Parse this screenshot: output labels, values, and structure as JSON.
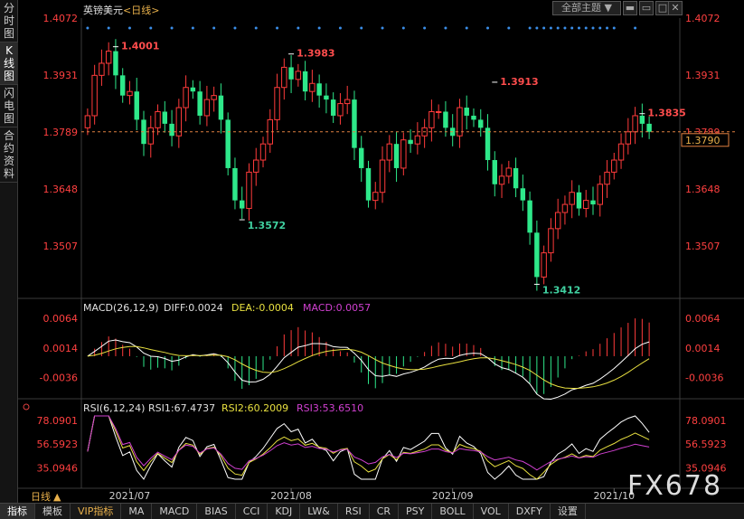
{
  "sidebar": [
    {
      "label": "分时图",
      "active": false
    },
    {
      "label": "K线图",
      "active": true
    },
    {
      "label": "闪电图",
      "active": false
    },
    {
      "label": "合约资料",
      "active": false
    }
  ],
  "header": {
    "symbol": "英镑美元",
    "period": "<日线>",
    "theme_select": "全部主题",
    "theme_arrow": "▼"
  },
  "chart_data": [
    {
      "type": "candlestick",
      "name": "英镑美元 <日线>",
      "yticks": [
        1.4072,
        1.3931,
        1.3789,
        1.3648,
        1.3507
      ],
      "yticks_text": [
        "1.4072",
        "1.3931",
        "1.3789",
        "1.3648",
        "1.3507"
      ],
      "ylim": [
        1.3395,
        1.4072
      ],
      "last_price": "1.3790",
      "annotations": [
        {
          "label": "1.4001",
          "value": 1.4001,
          "color": "#ff4d4d"
        },
        {
          "label": "1.3983",
          "value": 1.3983,
          "color": "#ff4d4d"
        },
        {
          "label": "1.3913",
          "value": 1.3913,
          "color": "#ff4d4d"
        },
        {
          "label": "1.3835",
          "value": 1.3835,
          "color": "#ff4d4d"
        },
        {
          "label": "1.3572",
          "value": 1.3572,
          "color": "#40d0a0"
        },
        {
          "label": "1.3412",
          "value": 1.3412,
          "color": "#40d0a0"
        }
      ],
      "x_labels": [
        "2021/07",
        "2021/08",
        "2021/09",
        "2021/10"
      ],
      "colors": {
        "up": "#ff3b3b",
        "down": "#2ee88a"
      },
      "closes": [
        1.383,
        1.393,
        1.396,
        1.399,
        1.393,
        1.388,
        1.389,
        1.382,
        1.376,
        1.38,
        1.384,
        1.381,
        1.378,
        1.385,
        1.39,
        1.389,
        1.383,
        1.387,
        1.388,
        1.382,
        1.37,
        1.362,
        1.36,
        1.369,
        1.372,
        1.376,
        1.382,
        1.39,
        1.395,
        1.392,
        1.394,
        1.389,
        1.391,
        1.388,
        1.387,
        1.383,
        1.386,
        1.387,
        1.375,
        1.37,
        1.362,
        1.364,
        1.372,
        1.376,
        1.37,
        1.377,
        1.376,
        1.378,
        1.38,
        1.384,
        1.384,
        1.38,
        1.378,
        1.385,
        1.383,
        1.382,
        1.38,
        1.372,
        1.366,
        1.368,
        1.37,
        1.365,
        1.362,
        1.354,
        1.343,
        1.349,
        1.355,
        1.359,
        1.361,
        1.364,
        1.36,
        1.362,
        1.361,
        1.366,
        1.369,
        1.372,
        1.376,
        1.379,
        1.383,
        1.381,
        1.379
      ]
    },
    {
      "type": "bar+line",
      "name": "MACD",
      "header": "MACD(26,12,9)",
      "diff_label": "DIFF:0.0024",
      "dea_label": "DEA:-0.0004",
      "macd_label": "MACD:0.0057",
      "yticks": [
        0.0064,
        0.0014,
        -0.0036
      ],
      "yticks_text": [
        "0.0064",
        "0.0014",
        "-0.0036"
      ],
      "ylim": [
        -0.0055,
        0.0064
      ],
      "colors": {
        "diff": "#ffffff",
        "dea": "#e8e040",
        "macd": "#d040d0"
      }
    },
    {
      "type": "line",
      "name": "RSI",
      "header": "RSI(6,12,24)",
      "rsi1_label": "RSI1:67.4737",
      "rsi2_label": "RSI2:60.2009",
      "rsi3_label": "RSI3:53.6510",
      "yticks": [
        78.0901,
        56.5923,
        35.0946
      ],
      "yticks_text": [
        "78.0901",
        "56.5923",
        "35.0946"
      ],
      "ylim": [
        25,
        82
      ],
      "colors": {
        "rsi1": "#ffffff",
        "rsi2": "#e8e040",
        "rsi3": "#d040d0"
      }
    }
  ],
  "period_label": "日线",
  "period_arrow": "▲",
  "bottom_tabs": [
    {
      "label": "指标",
      "active": true,
      "vip": false
    },
    {
      "label": "模板",
      "active": false,
      "vip": false
    },
    {
      "label": "VIP指标",
      "active": false,
      "vip": true
    },
    {
      "label": "MA",
      "active": false,
      "vip": false
    },
    {
      "label": "MACD",
      "active": false,
      "vip": false
    },
    {
      "label": "BIAS",
      "active": false,
      "vip": false
    },
    {
      "label": "CCI",
      "active": false,
      "vip": false
    },
    {
      "label": "KDJ",
      "active": false,
      "vip": false
    },
    {
      "label": "LW&",
      "active": false,
      "vip": false
    },
    {
      "label": "RSI",
      "active": false,
      "vip": false
    },
    {
      "label": "CR",
      "active": false,
      "vip": false
    },
    {
      "label": "PSY",
      "active": false,
      "vip": false
    },
    {
      "label": "BOLL",
      "active": false,
      "vip": false
    },
    {
      "label": "VOL",
      "active": false,
      "vip": false
    },
    {
      "label": "DXFY",
      "active": false,
      "vip": false
    },
    {
      "label": "设置",
      "active": false,
      "vip": false
    }
  ],
  "watermark": "FX678"
}
